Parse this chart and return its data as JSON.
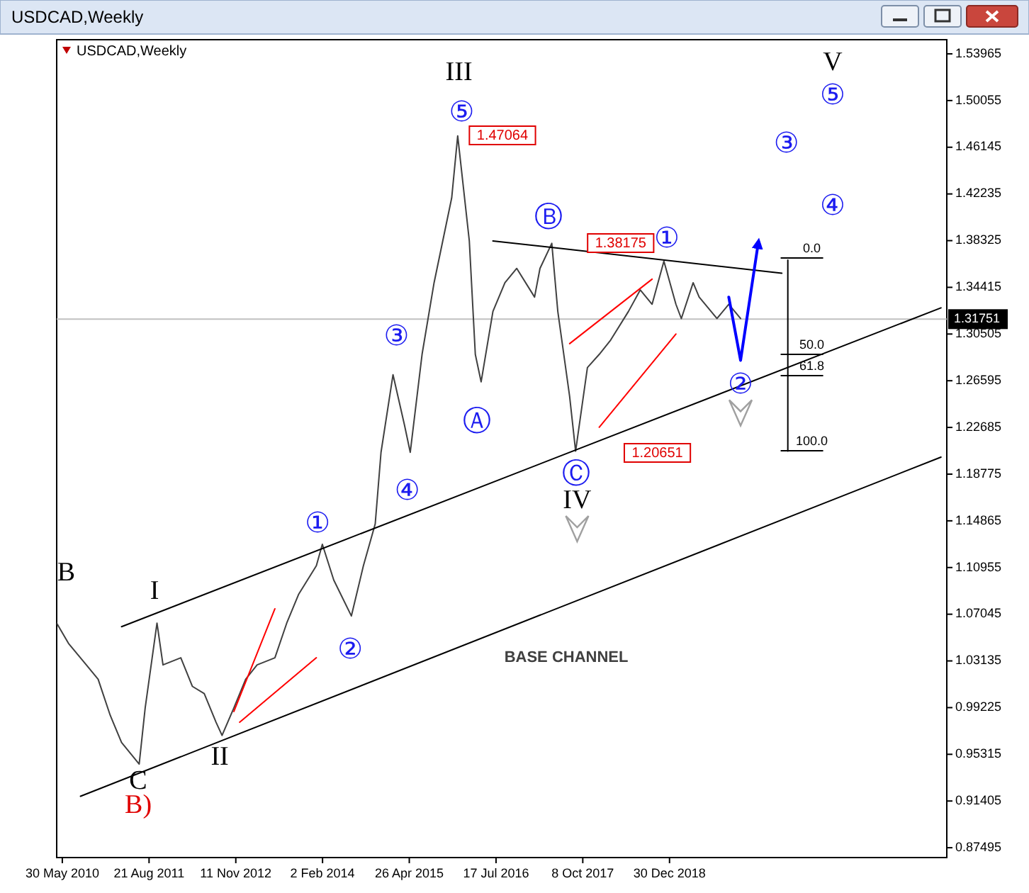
{
  "chart_data": {
    "type": "line",
    "title": "USDCAD,Weekly",
    "subtitle": "USDCAD,Weekly",
    "xlim": [
      "2010-05",
      "2022-12"
    ],
    "xticks": [
      {
        "value": "2010-05-30",
        "label": "30 May 2010"
      },
      {
        "value": "2011-08-21",
        "label": "21 Aug 2011"
      },
      {
        "value": "2012-11-11",
        "label": "11 Nov 2012"
      },
      {
        "value": "2014-02-02",
        "label": "2 Feb 2014"
      },
      {
        "value": "2015-04-26",
        "label": "26 Apr 2015"
      },
      {
        "value": "2016-07-17",
        "label": "17 Jul 2016"
      },
      {
        "value": "2017-10-08",
        "label": "8 Oct 2017"
      },
      {
        "value": "2018-12-30",
        "label": "30 Dec 2018"
      }
    ],
    "ylim": [
      0.8667,
      1.5515
    ],
    "yticks": [
      1.53965,
      1.50055,
      1.46145,
      1.42235,
      1.38325,
      1.34415,
      1.30505,
      1.26595,
      1.22685,
      1.18775,
      1.14865,
      1.10955,
      1.07045,
      1.03135,
      0.99225,
      0.95315,
      0.91405,
      0.87495
    ],
    "series": [
      {
        "color": "#404040",
        "x": [
          "2010-05",
          "2010-07",
          "2010-10",
          "2010-12",
          "2011-02",
          "2011-04",
          "2011-07",
          "2011-08",
          "2011-10",
          "2011-11",
          "2012-02",
          "2012-04",
          "2012-06",
          "2012-08",
          "2012-09",
          "2012-11",
          "2013-01",
          "2013-03",
          "2013-06",
          "2013-08",
          "2013-10",
          "2014-01",
          "2014-02",
          "2014-04",
          "2014-07",
          "2014-09",
          "2014-11",
          "2014-12",
          "2015-02",
          "2015-04",
          "2015-05",
          "2015-07",
          "2015-09",
          "2015-12",
          "2016-01",
          "2016-03",
          "2016-04",
          "2016-05",
          "2016-07",
          "2016-09",
          "2016-11",
          "2017-02",
          "2017-03",
          "2017-05",
          "2017-06",
          "2017-08",
          "2017-09",
          "2017-11",
          "2018-01",
          "2018-03",
          "2018-06",
          "2018-08",
          "2018-10",
          "2018-12",
          "2019-02",
          "2019-03",
          "2019-05",
          "2019-06",
          "2019-09",
          "2019-11",
          "2020-01"
        ],
        "values": [
          1.063,
          1.046,
          1.028,
          1.016,
          0.986,
          0.963,
          0.945,
          0.992,
          1.063,
          1.028,
          1.034,
          1.01,
          1.004,
          0.98,
          0.969,
          0.992,
          1.016,
          1.028,
          1.034,
          1.063,
          1.087,
          1.111,
          1.129,
          1.099,
          1.069,
          1.111,
          1.146,
          1.206,
          1.271,
          1.229,
          1.206,
          1.288,
          1.348,
          1.419,
          1.471,
          1.383,
          1.288,
          1.265,
          1.324,
          1.348,
          1.36,
          1.336,
          1.36,
          1.381,
          1.324,
          1.253,
          1.207,
          1.277,
          1.288,
          1.3,
          1.324,
          1.342,
          1.33,
          1.366,
          1.33,
          1.318,
          1.348,
          1.336,
          1.318,
          1.33,
          1.318
        ]
      },
      {
        "color": "#000000",
        "x": [
          "2010-09",
          "2022-11"
        ],
        "values": [
          0.918,
          1.202
        ]
      },
      {
        "color": "#000000",
        "x": [
          "2011-04",
          "2022-11"
        ],
        "values": [
          1.06,
          1.327
        ]
      },
      {
        "color": "#000000",
        "x": [
          "2016-07",
          "2020-08"
        ],
        "values": [
          1.383,
          1.356
        ]
      },
      {
        "color": "#ff0000",
        "x": [
          "2012-11",
          "2013-06"
        ],
        "values": [
          0.989,
          1.075
        ]
      },
      {
        "color": "#ff0000",
        "x": [
          "2012-12",
          "2014-01"
        ],
        "values": [
          0.98,
          1.034
        ]
      },
      {
        "color": "#ff0000",
        "x": [
          "2017-08",
          "2018-10"
        ],
        "values": [
          1.297,
          1.351
        ]
      },
      {
        "color": "#ff0000",
        "x": [
          "2018-01",
          "2019-02"
        ],
        "values": [
          1.227,
          1.305
        ]
      },
      {
        "color": "#000000",
        "x": [
          "2020-09",
          "2020-09"
        ],
        "values": [
          1.367,
          1.207
        ]
      },
      {
        "color": "#0000ff",
        "x": [
          "2019-11",
          "2020-01",
          "2020-04"
        ],
        "values": [
          1.336,
          1.283,
          1.381
        ]
      }
    ],
    "ref_lines": [
      {
        "axis": "y",
        "value": 1.31751,
        "label": "1.31751",
        "color": "#c0c0c0"
      }
    ],
    "annotations": [
      "B",
      "C",
      "B)",
      "I",
      "II",
      "III",
      "IV",
      "V",
      "①",
      "②",
      "③",
      "④",
      "⑤",
      "Ⓐ",
      "Ⓑ",
      "Ⓒ",
      "①",
      {
        "text": "②",
        "x": "2020-01",
        "y": 1.283
      },
      "③",
      "④",
      "⑤",
      "1.47064",
      "1.38175",
      "1.20651",
      "0.0",
      "50.0",
      "61.8",
      "100.0",
      "BASE CHANNEL"
    ]
  }
}
